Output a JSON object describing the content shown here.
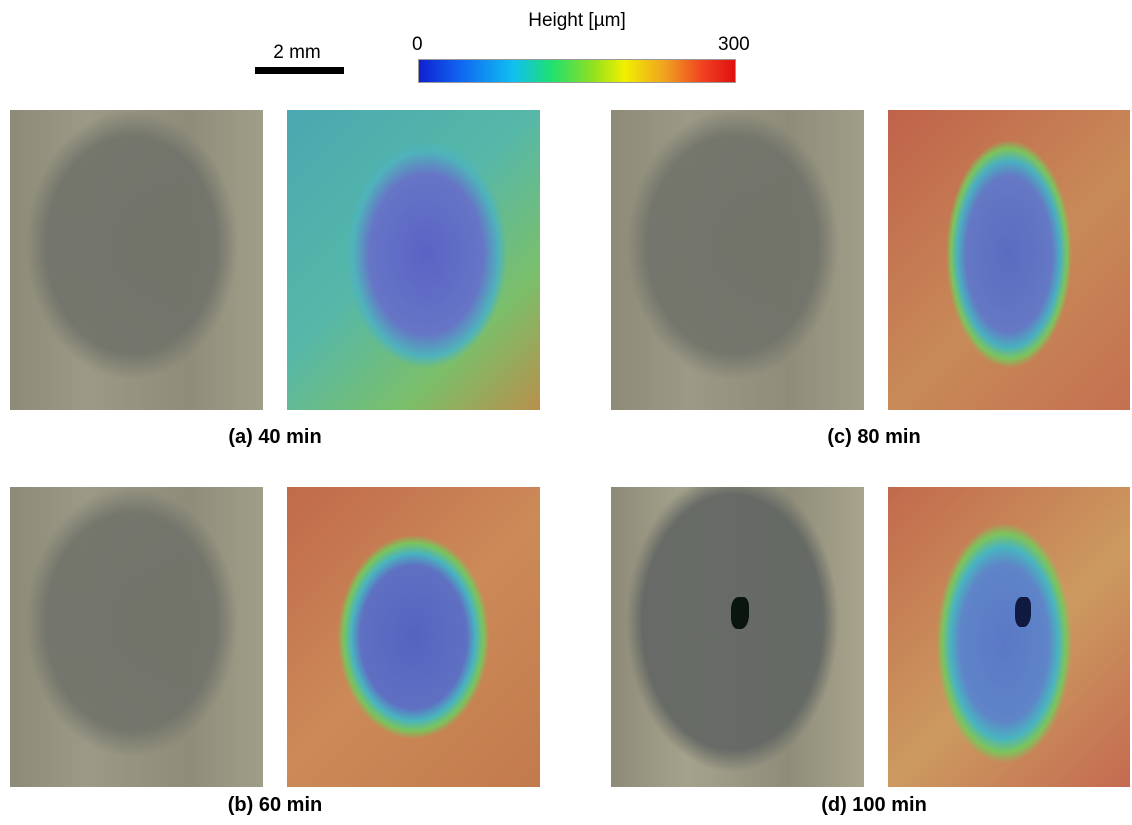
{
  "scale_bar": {
    "label": "2 mm"
  },
  "colorbar": {
    "title": "Height [µm]",
    "min_label": "0",
    "max_label": "300"
  },
  "panels": [
    {
      "caption": "(a) 40 min"
    },
    {
      "caption": "(b) 60 min"
    },
    {
      "caption": "(c) 80 min"
    },
    {
      "caption": "(d) 100 min"
    }
  ]
}
